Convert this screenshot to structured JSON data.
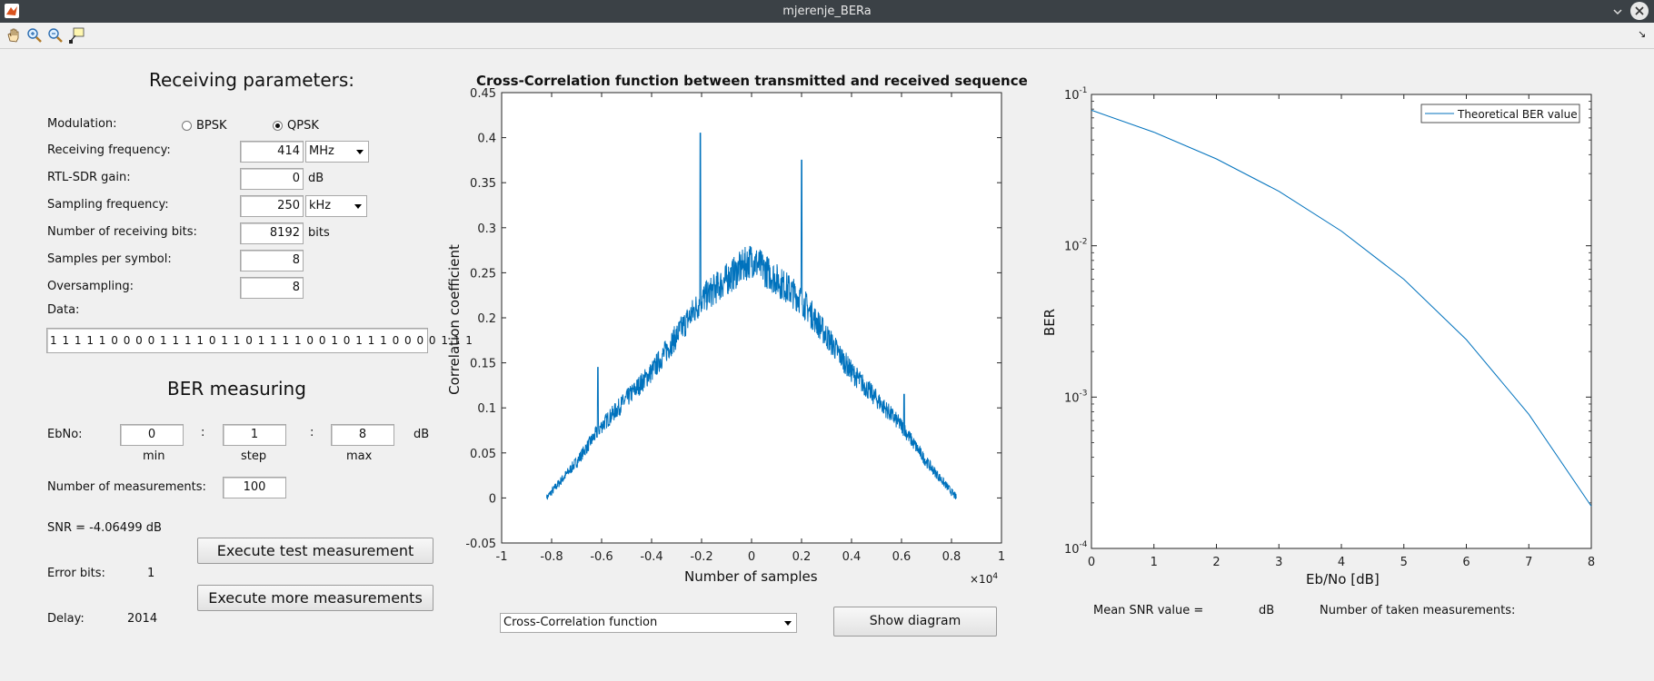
{
  "window": {
    "title": "mjerenje_BERa"
  },
  "toolbar": {
    "icons": [
      "pan-icon",
      "zoom-in-icon",
      "zoom-out-icon",
      "data-cursor-icon"
    ],
    "undock": "↘"
  },
  "receiving": {
    "heading": "Receiving parameters:",
    "modulation_label": "Modulation:",
    "bpsk_label": "BPSK",
    "qpsk_label": "QPSK",
    "selected_modulation": "QPSK",
    "freq_label": "Receiving frequency:",
    "freq_value": "414",
    "freq_unit": "MHz",
    "gain_label": "RTL-SDR gain:",
    "gain_value": "0",
    "gain_unit": "dB",
    "sampling_label": "Sampling frequency:",
    "sampling_value": "250",
    "sampling_unit": "kHz",
    "bits_label": "Number of receiving bits:",
    "bits_value": "8192",
    "bits_unit": "bits",
    "sps_label": "Samples per symbol:",
    "sps_value": "8",
    "oversampling_label": "Oversampling:",
    "oversampling_value": "8",
    "data_label": "Data:",
    "data_value": "1 1 1 1 1 0 0 0 0 1 1 1 1 0 1 1 0 1 1 1 1 0 0 1 0 1 1 1 0 0 0 0 1 1 1"
  },
  "ber": {
    "heading": "BER measuring",
    "ebno_label": "EbNo:",
    "min_value": "0",
    "step_value": "1",
    "max_value": "8",
    "min_label": "min",
    "step_label": "step",
    "max_label": "max",
    "sep": ":",
    "ebno_unit": "dB",
    "nmeas_label": "Number of measurements:",
    "nmeas_value": "100",
    "snr_text": "SNR =  -4.06499 dB",
    "error_label": "Error bits:",
    "error_value": "1",
    "delay_label": "Delay:",
    "delay_value": "2014",
    "exec_test": "Execute test measurement",
    "exec_more": "Execute more measurements"
  },
  "middle": {
    "select_value": "Cross-Correlation function",
    "show_button": "Show diagram"
  },
  "right_footer": {
    "mean_snr": "Mean SNR value =",
    "db": "dB",
    "taken": "Number of taken measurements:"
  },
  "colors": {
    "line": "#0072bd",
    "titlebar": "#3b4146",
    "background": "#f0f0f0"
  },
  "chart_data": [
    {
      "type": "line",
      "title": "Cross-Correlation function between transmitted and received sequence",
      "xlabel": "Number of samples",
      "ylabel": "Correlation coefficient",
      "x_multiplier": "×10^4",
      "xlim": [
        -1,
        1
      ],
      "ylim": [
        -0.05,
        0.45
      ],
      "xticks": [
        "-1",
        "-0.8",
        "-0.6",
        "-0.4",
        "-0.2",
        "0",
        "0.2",
        "0.4",
        "0.6",
        "0.8",
        "1"
      ],
      "yticks": [
        "-0.05",
        "0",
        "0.05",
        "0.1",
        "0.15",
        "0.2",
        "0.25",
        "0.3",
        "0.35",
        "0.4",
        "0.45"
      ],
      "envelope_x": [
        -0.82,
        -0.7,
        -0.6,
        -0.4,
        -0.2,
        0,
        0.2,
        0.4,
        0.6,
        0.7,
        0.82
      ],
      "envelope_y": [
        0,
        0.04,
        0.08,
        0.14,
        0.22,
        0.265,
        0.22,
        0.14,
        0.08,
        0.04,
        0
      ],
      "spikes": [
        [
          -0.615,
          0.145
        ],
        [
          -0.205,
          0.405
        ],
        [
          0.2,
          0.375
        ],
        [
          0.61,
          0.115
        ]
      ]
    },
    {
      "type": "line",
      "scale": "log-y",
      "xlabel": "Eb/No [dB]",
      "ylabel": "BER",
      "legend": "Theoretical BER value",
      "legend_position": "top-right",
      "xlim": [
        0,
        8
      ],
      "ylim": [
        0.0001,
        0.1
      ],
      "xticks": [
        "0",
        "1",
        "2",
        "3",
        "4",
        "5",
        "6",
        "7",
        "8"
      ],
      "x": [
        0,
        1,
        2,
        3,
        4,
        5,
        6,
        7,
        8
      ],
      "y": [
        0.0786,
        0.0563,
        0.0375,
        0.0229,
        0.0125,
        0.006,
        0.0024,
        0.00077,
        0.00019
      ]
    }
  ]
}
